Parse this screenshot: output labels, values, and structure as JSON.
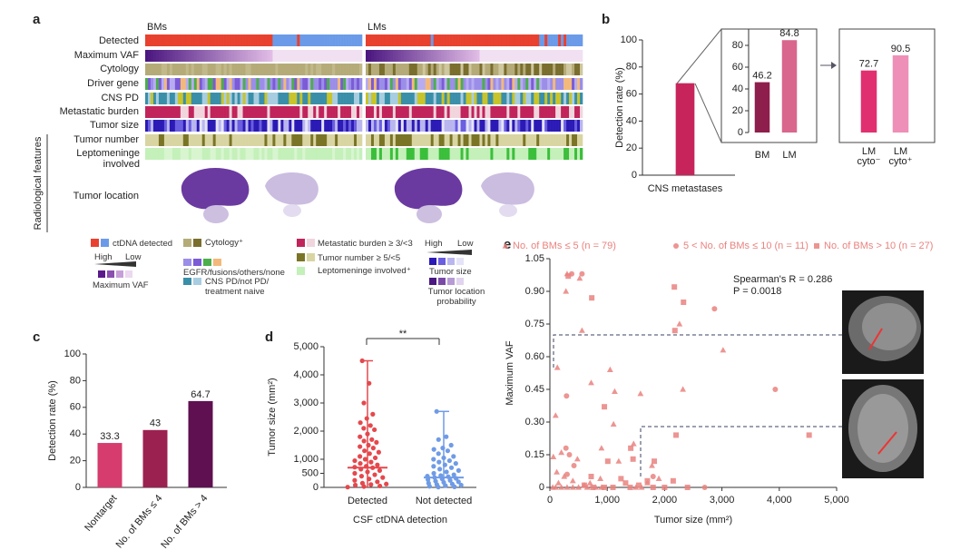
{
  "panel_a": {
    "label": "a",
    "groups": [
      "BMs",
      "LMs"
    ],
    "rows": [
      "Detected",
      "Maximum VAF",
      "Cytology",
      "Driver gene",
      "CNS PD",
      "Metastatic burden",
      "Tumor size",
      "Tumor number",
      "Leptomeninge involved"
    ],
    "radiological_label": "Radiological features",
    "location_label": "Tumor location",
    "legend": [
      "ctDNA detected",
      "High",
      "Low",
      "Maximum VAF",
      "Cytology⁺",
      "EGFR/fusions/others/none",
      "CNS PD/not PD/ treatment naive",
      "Metastatic burden ≥ 3/<3",
      "Tumor number ≥ 5/<5",
      "Leptomeninge involved⁺",
      "High",
      "Low",
      "Tumor size",
      "Tumor location probability"
    ]
  },
  "chart_data": [
    {
      "type": "bar",
      "label": "b",
      "ylabel": "Detection rate (%)",
      "categories": [
        "CNS metastases"
      ],
      "values": [
        68
      ],
      "colors": [
        "#c8245c"
      ],
      "ylim": [
        0,
        100
      ],
      "yticks": [
        0,
        20,
        40,
        60,
        80,
        100
      ]
    },
    {
      "type": "bar",
      "categories": [
        "BM",
        "LM"
      ],
      "values": [
        46.2,
        84.8
      ],
      "colors": [
        "#8e1f4c",
        "#d9668d"
      ],
      "ylim": [
        0,
        95
      ],
      "yticks": [
        0,
        20,
        40,
        60,
        80
      ],
      "data_labels": true
    },
    {
      "type": "bar",
      "categories": [
        "LM cyto⁻",
        "LM cyto⁺"
      ],
      "values": [
        72.7,
        90.5
      ],
      "colors": [
        "#e0306f",
        "#ee8fb8"
      ],
      "ylim": [
        0,
        100
      ],
      "data_labels": true
    },
    {
      "type": "bar",
      "label": "c",
      "ylabel": "Detection rate (%)",
      "categories": [
        "Nontarget",
        "No. of BMs ≤ 4",
        "No. of BMs > 4"
      ],
      "values": [
        33.3,
        43,
        64.7
      ],
      "colors": [
        "#d63c6e",
        "#9b2150",
        "#5e1050"
      ],
      "ylim": [
        0,
        100
      ],
      "yticks": [
        0,
        20,
        40,
        60,
        80,
        100
      ],
      "data_labels": true
    },
    {
      "type": "strip",
      "label": "d",
      "ylabel": "Tumor size (mm²)",
      "xlabel": "CSF ctDNA detection",
      "annotation": "**",
      "ylim": [
        0,
        5000
      ],
      "yticks": [
        0,
        500,
        {
          "value": 1000,
          "label": "1,000"
        },
        {
          "value": 2000,
          "label": "2,000"
        },
        {
          "value": 3000,
          "label": "3,000"
        },
        {
          "value": 4000,
          "label": "4,000"
        },
        {
          "value": 5000,
          "label": "5,000"
        }
      ],
      "series": [
        {
          "name": "Detected",
          "color": "#e5484d",
          "median": 700,
          "range": [
            0,
            4500
          ],
          "values": [
            4500,
            3700,
            3000,
            2600,
            2450,
            2300,
            2200,
            2100,
            2050,
            1900,
            1800,
            1700,
            1650,
            1600,
            1500,
            1450,
            1400,
            1300,
            1250,
            1200,
            1100,
            1050,
            1000,
            950,
            900,
            850,
            800,
            750,
            720,
            700,
            650,
            600,
            550,
            500,
            450,
            400,
            350,
            300,
            250,
            200,
            150,
            120,
            100,
            80,
            50,
            30,
            10
          ]
        },
        {
          "name": "Not detected",
          "color": "#6f9be6",
          "median": 350,
          "range": [
            0,
            2700
          ],
          "values": [
            2700,
            1800,
            1700,
            1500,
            1400,
            1350,
            1300,
            1200,
            1100,
            1050,
            1000,
            950,
            900,
            850,
            800,
            750,
            700,
            650,
            600,
            550,
            500,
            450,
            420,
            400,
            380,
            350,
            320,
            300,
            280,
            250,
            220,
            200,
            180,
            150,
            120,
            100,
            80,
            60,
            40,
            20,
            10
          ]
        }
      ]
    },
    {
      "type": "scatter",
      "label": "e",
      "xlabel": "Tumor size (mm²)",
      "ylabel": "Maximum VAF",
      "annotations": [
        "Spearman's R = 0.286",
        "P = 0.0018"
      ],
      "xlim": [
        0,
        5000
      ],
      "xticks": [
        0,
        {
          "value": 1000,
          "label": "1,000"
        },
        {
          "value": 2000,
          "label": "2,000"
        },
        {
          "value": 3000,
          "label": "3,000"
        },
        {
          "value": 4000,
          "label": "4,000"
        },
        {
          "value": 5000,
          "label": "5,000"
        }
      ],
      "ylim": [
        0,
        1.05
      ],
      "yticks": [
        0,
        0.15,
        {
          "value": 0.3,
          "label": "0.30"
        },
        {
          "value": 0.45,
          "label": "0.45"
        },
        {
          "value": 0.6,
          "label": "0.60"
        },
        {
          "value": 0.75,
          "label": "0.75"
        },
        {
          "value": 0.9,
          "label": "0.90"
        },
        1.05
      ],
      "series": [
        {
          "name": "No. of BMs ≤ 5 (n = 79)",
          "marker": "triangle",
          "color": "#e9837f",
          "x": [
            300,
            520,
            130,
            100,
            280,
            560,
            720,
            1050,
            1130,
            1580,
            2260,
            2320,
            3020,
            1110,
            1460,
            900,
            480,
            200,
            60,
            120,
            250,
            400,
            150,
            600,
            1200,
            1780,
            880,
            700,
            50,
            100,
            200,
            300,
            400,
            500,
            650,
            800,
            900,
            1500,
            1600,
            1900,
            1700
          ],
          "values": [
            0.98,
            0.96,
            0.55,
            0.33,
            0.9,
            0.72,
            0.48,
            0.54,
            0.44,
            0.43,
            0.75,
            0.45,
            0.63,
            0.29,
            0.2,
            0.18,
            0.13,
            0.16,
            0.14,
            0.07,
            0.05,
            0.03,
            0.02,
            0.01,
            0.12,
            0.1,
            0.04,
            0.02,
            0,
            0,
            0,
            0,
            0,
            0,
            0,
            0,
            0,
            0,
            0,
            0.04,
            0.02
          ]
        },
        {
          "name": "5 < No. of BMs ≤ 10 (n = 11)",
          "marker": "circle",
          "color": "#e9837f",
          "x": [
            380,
            560,
            290,
            2870,
            3930,
            280,
            340,
            420,
            1800,
            2700,
            300
          ],
          "values": [
            0.98,
            0.98,
            0.42,
            0.82,
            0.45,
            0.18,
            0.15,
            0.1,
            0.05,
            0,
            0.06
          ]
        },
        {
          "name": "No. of BMs > 10 (n = 27)",
          "marker": "square",
          "color": "#e9837f",
          "x": [
            320,
            730,
            2170,
            2330,
            2180,
            950,
            2200,
            4520,
            1410,
            1450,
            1820,
            1010,
            720,
            1240,
            2150,
            600,
            1100,
            1400,
            1800,
            2000,
            950,
            750,
            1320,
            1550,
            1700,
            2400
          ],
          "values": [
            0.97,
            0.87,
            0.92,
            0.85,
            0.72,
            0.37,
            0.24,
            0.24,
            0.18,
            0.13,
            0.12,
            0.12,
            0.05,
            0.04,
            0.03,
            0.01,
            0,
            0,
            0,
            0,
            0,
            0,
            0.02,
            0.01,
            0.03,
            0
          ]
        }
      ]
    }
  ]
}
